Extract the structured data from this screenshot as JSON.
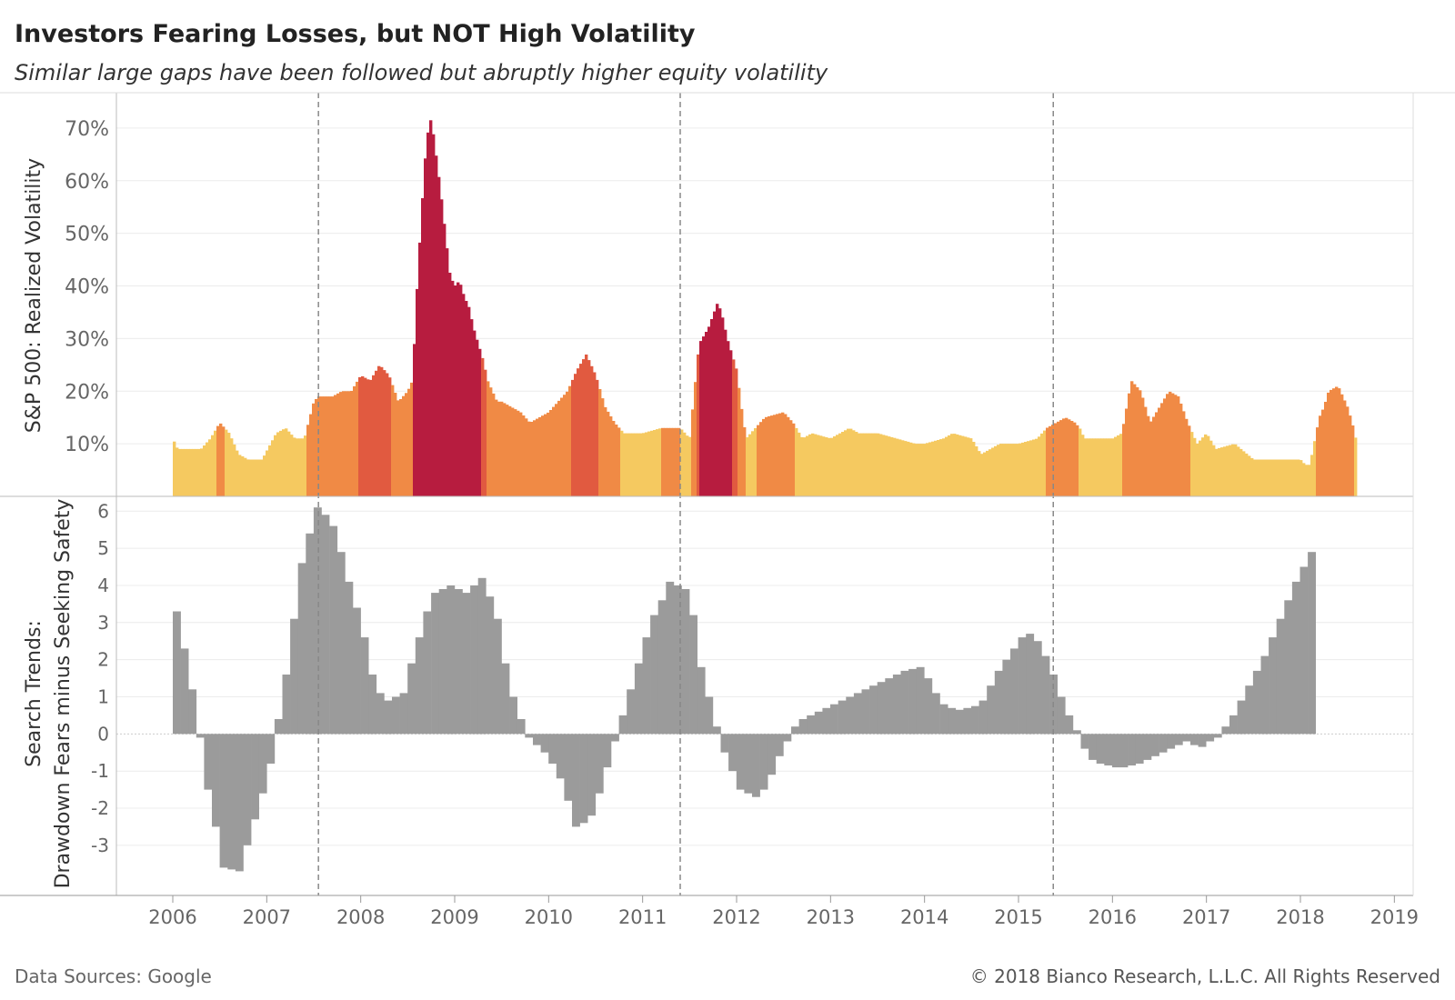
{
  "header": {
    "title": "Investors Fearing Losses, but NOT High Volatility",
    "subtitle": "Similar large gaps have been followed but abruptly higher equity volatility"
  },
  "footer": {
    "source": "Data Sources: Google",
    "copyright": "© 2018 Bianco Research, L.L.C. All Rights Reserved"
  },
  "colors": {
    "vol_low": "#f5c960",
    "vol_mid": "#f08a45",
    "vol_high": "#e15a40",
    "vol_extreme": "#b71c3f",
    "search_bar": "#9b9b9b",
    "grid": "#ececec",
    "vline": "#888888"
  },
  "chart_data": [
    {
      "type": "area",
      "title": "",
      "ylabel": "S&P 500: Realized Volatility",
      "xlim": [
        2005.4,
        2019.2
      ],
      "ylim": [
        0,
        75
      ],
      "yticks": [
        10,
        20,
        30,
        40,
        50,
        60,
        70
      ],
      "ytick_labels": [
        "10%",
        "20%",
        "30%",
        "40%",
        "50%",
        "60%",
        "70%"
      ],
      "series": [
        {
          "x": [
            2006.0,
            2006.05,
            2006.1,
            2006.3,
            2006.4,
            2006.5,
            2006.6,
            2006.7,
            2006.8,
            2006.85,
            2006.95,
            2007.1,
            2007.2,
            2007.3,
            2007.4,
            2007.5,
            2007.55,
            2007.6,
            2007.7,
            2007.8,
            2007.9,
            2008.0,
            2008.1,
            2008.2,
            2008.3,
            2008.4,
            2008.5,
            2008.55,
            2008.6,
            2008.65,
            2008.7,
            2008.75,
            2008.8,
            2008.85,
            2008.9,
            2008.95,
            2009.0,
            2009.05,
            2009.1,
            2009.15,
            2009.2,
            2009.25,
            2009.3,
            2009.35,
            2009.4,
            2009.45,
            2009.5,
            2009.6,
            2009.7,
            2009.8,
            2010.0,
            2010.2,
            2010.3,
            2010.4,
            2010.5,
            2010.6,
            2010.7,
            2010.8,
            2011.0,
            2011.2,
            2011.4,
            2011.5,
            2011.6,
            2011.7,
            2011.8,
            2011.85,
            2011.9,
            2012.0,
            2012.05,
            2012.1,
            2012.2,
            2012.3,
            2012.5,
            2012.6,
            2012.7,
            2012.8,
            2013.0,
            2013.2,
            2013.3,
            2013.5,
            2013.7,
            2013.9,
            2014.0,
            2014.2,
            2014.3,
            2014.5,
            2014.6,
            2014.7,
            2014.8,
            2015.0,
            2015.2,
            2015.3,
            2015.4,
            2015.5,
            2015.6,
            2015.65,
            2015.7,
            2015.8,
            2015.9,
            2016.0,
            2016.1,
            2016.2,
            2016.3,
            2016.4,
            2016.5,
            2016.6,
            2016.7,
            2016.8,
            2016.9,
            2017.0,
            2017.1,
            2017.3,
            2017.5,
            2017.7,
            2017.9,
            2018.0,
            2018.05,
            2018.1,
            2018.2,
            2018.25,
            2018.3,
            2018.4,
            2018.5,
            2018.55,
            2018.6
          ],
          "values": [
            11,
            9,
            9,
            9,
            11,
            14,
            12,
            8,
            7,
            7,
            7,
            12,
            13,
            11,
            11,
            18,
            19,
            19,
            19,
            20,
            20,
            23,
            22,
            25,
            23,
            18,
            20,
            22,
            40,
            55,
            68,
            72,
            65,
            58,
            50,
            42,
            40,
            41,
            38,
            36,
            32,
            29,
            26,
            22,
            20,
            18,
            18,
            17,
            16,
            14,
            16,
            20,
            24,
            27,
            23,
            17,
            14,
            12,
            12,
            13,
            13,
            11,
            29,
            32,
            37,
            34,
            30,
            24,
            17,
            11,
            13,
            15,
            16,
            14,
            11,
            12,
            11,
            13,
            12,
            12,
            11,
            10,
            10,
            11,
            12,
            11,
            8,
            9,
            10,
            10,
            11,
            13,
            14,
            15,
            14,
            13,
            11,
            11,
            11,
            11,
            12,
            22,
            20,
            14,
            17,
            20,
            19,
            14,
            10,
            12,
            9,
            10,
            7,
            7,
            7,
            7,
            6,
            6,
            15,
            17,
            20,
            21,
            17,
            14,
            10
          ]
        }
      ],
      "vlines": [
        2007.55,
        2011.4,
        2015.37
      ]
    },
    {
      "type": "bar",
      "title": "",
      "ylabel": "Search Trends: Drawdown Fears minus Seeking Safety",
      "xlabel": "",
      "xlim": [
        2005.4,
        2019.2
      ],
      "ylim": [
        -4.3,
        6.3
      ],
      "yticks": [
        -3,
        -2,
        -1,
        0,
        1,
        2,
        3,
        4,
        5,
        6
      ],
      "ytick_labels": [
        "-3",
        "-2",
        "-1",
        "0",
        "1",
        "2",
        "3",
        "4",
        "5",
        "6"
      ],
      "xticks": [
        2006,
        2007,
        2008,
        2009,
        2010,
        2011,
        2012,
        2013,
        2014,
        2015,
        2016,
        2017,
        2018,
        2019
      ],
      "xtick_labels": [
        "2006",
        "2007",
        "2008",
        "2009",
        "2010",
        "2011",
        "2012",
        "2013",
        "2014",
        "2015",
        "2016",
        "2017",
        "2018",
        "2019"
      ],
      "bar_width": 0.0833,
      "series": [
        {
          "start": 2006.0,
          "step": 0.0833,
          "values": [
            3.3,
            2.3,
            1.2,
            -0.1,
            -1.5,
            -2.5,
            -3.6,
            -3.65,
            -3.7,
            -3.0,
            -2.3,
            -1.6,
            -0.8,
            0.4,
            1.6,
            3.1,
            4.6,
            5.4,
            6.1,
            5.9,
            5.6,
            4.9,
            4.1,
            3.4,
            2.6,
            1.6,
            1.1,
            0.9,
            1.0,
            1.1,
            1.9,
            2.6,
            3.3,
            3.8,
            3.9,
            4.0,
            3.9,
            3.8,
            4.0,
            4.2,
            3.7,
            3.1,
            1.9,
            1.0,
            0.4,
            -0.1,
            -0.3,
            -0.5,
            -0.8,
            -1.2,
            -1.8,
            -2.5,
            -2.4,
            -2.2,
            -1.6,
            -0.9,
            -0.2,
            0.5,
            1.2,
            1.9,
            2.6,
            3.2,
            3.6,
            4.1,
            4.0,
            3.9,
            3.2,
            1.8,
            1.0,
            0.2,
            -0.5,
            -1.0,
            -1.5,
            -1.6,
            -1.7,
            -1.5,
            -1.1,
            -0.6,
            -0.2,
            0.2,
            0.4,
            0.5,
            0.6,
            0.7,
            0.8,
            0.9,
            1.0,
            1.1,
            1.2,
            1.3,
            1.4,
            1.5,
            1.6,
            1.7,
            1.75,
            1.8,
            1.5,
            1.1,
            0.8,
            0.7,
            0.65,
            0.7,
            0.75,
            0.9,
            1.3,
            1.7,
            2.0,
            2.3,
            2.6,
            2.7,
            2.5,
            2.1,
            1.6,
            1.0,
            0.5,
            0.1,
            -0.4,
            -0.7,
            -0.8,
            -0.85,
            -0.9,
            -0.9,
            -0.85,
            -0.8,
            -0.7,
            -0.6,
            -0.5,
            -0.4,
            -0.3,
            -0.2,
            -0.3,
            -0.35,
            -0.2,
            -0.1,
            0.2,
            0.5,
            0.9,
            1.3,
            1.7,
            2.1,
            2.6,
            3.1,
            3.6,
            4.1,
            4.5,
            4.9
          ]
        }
      ],
      "vlines": [
        2007.55,
        2011.4,
        2015.37
      ]
    }
  ]
}
